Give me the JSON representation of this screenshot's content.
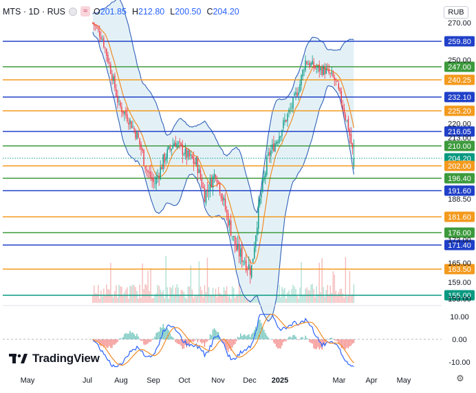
{
  "legend": {
    "symbol": "MTS · 1D · RUS",
    "open_key": "O",
    "open": "201.85",
    "high_key": "H",
    "high": "212.80",
    "low_key": "L",
    "low": "200.50",
    "close_key": "C",
    "close": "204.20"
  },
  "currency": "RUB",
  "brand": "TradingView",
  "chart_data": {
    "type": "candlestick",
    "x_ticks": [
      "May",
      "Jul",
      "Aug",
      "Sep",
      "Oct",
      "Nov",
      "Dec",
      "2025",
      "Mar",
      "Apr",
      "May"
    ],
    "price_axis_labels": [
      "270.00",
      "250.00",
      "220.00",
      "213.00",
      "188.50",
      "173.00",
      "165.00",
      "159.00",
      "153.00"
    ],
    "levels": [
      {
        "value": 259.8,
        "label": "259.80",
        "color": "#2040c8"
      },
      {
        "value": 247.0,
        "label": "247.00",
        "color": "#3c9a3c"
      },
      {
        "value": 240.25,
        "label": "240.25",
        "color": "#f39a1e"
      },
      {
        "value": 232.1,
        "label": "232.10",
        "color": "#2040c8"
      },
      {
        "value": 225.2,
        "label": "225.20",
        "color": "#f39a1e"
      },
      {
        "value": 216.05,
        "label": "216.05",
        "color": "#2040c8"
      },
      {
        "value": 210.0,
        "label": "210.00",
        "color": "#3c9a3c"
      },
      {
        "value": 204.2,
        "label": "204.20",
        "color": "#089981"
      },
      {
        "value": 202.0,
        "label": "202.00",
        "color": "#f39a1e"
      },
      {
        "value": 196.4,
        "label": "196.40",
        "color": "#3c9a3c"
      },
      {
        "value": 191.6,
        "label": "191.60",
        "color": "#2040c8"
      },
      {
        "value": 181.6,
        "label": "181.60",
        "color": "#f39a1e"
      },
      {
        "value": 176.0,
        "label": "176.00",
        "color": "#3c9a3c"
      },
      {
        "value": 171.4,
        "label": "171.40",
        "color": "#2040c8"
      },
      {
        "value": 163.5,
        "label": "163.50",
        "color": "#f39a1e"
      },
      {
        "value": 155.0,
        "label": "155.00",
        "color": "#089981"
      }
    ],
    "close_path": [
      {
        "x": 0.0,
        "y": 270.0
      },
      {
        "x": 0.025,
        "y": 262.0
      },
      {
        "x": 0.05,
        "y": 244.0
      },
      {
        "x": 0.07,
        "y": 228.0
      },
      {
        "x": 0.095,
        "y": 222.0
      },
      {
        "x": 0.12,
        "y": 214.0
      },
      {
        "x": 0.145,
        "y": 200.0
      },
      {
        "x": 0.165,
        "y": 194.0
      },
      {
        "x": 0.19,
        "y": 204.0
      },
      {
        "x": 0.22,
        "y": 212.0
      },
      {
        "x": 0.25,
        "y": 206.0
      },
      {
        "x": 0.28,
        "y": 202.0
      },
      {
        "x": 0.3,
        "y": 190.0
      },
      {
        "x": 0.33,
        "y": 199.0
      },
      {
        "x": 0.36,
        "y": 182.0
      },
      {
        "x": 0.385,
        "y": 170.0
      },
      {
        "x": 0.41,
        "y": 166.0
      },
      {
        "x": 0.425,
        "y": 163.0
      },
      {
        "x": 0.445,
        "y": 185.0
      },
      {
        "x": 0.47,
        "y": 205.0
      },
      {
        "x": 0.5,
        "y": 215.0
      },
      {
        "x": 0.53,
        "y": 226.0
      },
      {
        "x": 0.555,
        "y": 238.0
      },
      {
        "x": 0.57,
        "y": 250.0
      },
      {
        "x": 0.6,
        "y": 246.0
      },
      {
        "x": 0.625,
        "y": 245.0
      },
      {
        "x": 0.65,
        "y": 240.0
      },
      {
        "x": 0.67,
        "y": 228.0
      },
      {
        "x": 0.685,
        "y": 218.0
      },
      {
        "x": 0.7,
        "y": 204.2
      }
    ],
    "macd_axis_labels": [
      "10.00",
      "0.00",
      "-10.00"
    ]
  }
}
